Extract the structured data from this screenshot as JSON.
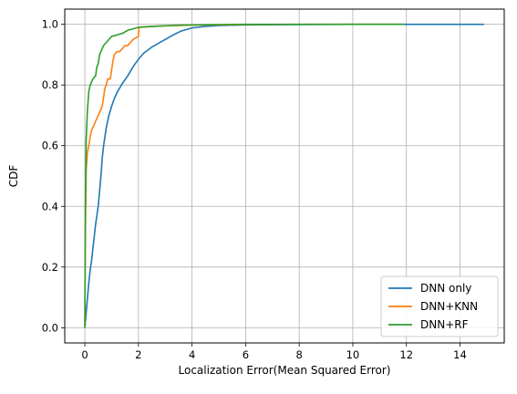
{
  "chart_data": {
    "type": "line",
    "title": "",
    "xlabel": "Localization Error(Mean Squared Error)",
    "ylabel": "CDF",
    "xlim": [
      -0.75,
      15.65
    ],
    "ylim": [
      -0.05,
      1.05
    ],
    "xticks": [
      0,
      2,
      4,
      6,
      8,
      10,
      12,
      14
    ],
    "yticks": [
      0.0,
      0.2,
      0.4,
      0.6,
      0.8,
      1.0
    ],
    "xtick_labels": [
      "0",
      "2",
      "4",
      "6",
      "8",
      "10",
      "12",
      "14"
    ],
    "ytick_labels": [
      "0.0",
      "0.2",
      "0.4",
      "0.6",
      "0.8",
      "1.0"
    ],
    "grid": true,
    "legend_position": "bottom-right",
    "series": [
      {
        "name": "DNN only",
        "color": "#1f77b4",
        "points": [
          [
            0.0,
            0.0
          ],
          [
            0.05,
            0.05
          ],
          [
            0.1,
            0.1
          ],
          [
            0.15,
            0.15
          ],
          [
            0.2,
            0.19
          ],
          [
            0.25,
            0.22
          ],
          [
            0.3,
            0.26
          ],
          [
            0.35,
            0.3
          ],
          [
            0.4,
            0.34
          ],
          [
            0.45,
            0.37
          ],
          [
            0.5,
            0.4
          ],
          [
            0.55,
            0.45
          ],
          [
            0.6,
            0.5
          ],
          [
            0.65,
            0.56
          ],
          [
            0.7,
            0.6
          ],
          [
            0.75,
            0.63
          ],
          [
            0.8,
            0.66
          ],
          [
            0.9,
            0.7
          ],
          [
            1.0,
            0.73
          ],
          [
            1.1,
            0.755
          ],
          [
            1.2,
            0.775
          ],
          [
            1.4,
            0.805
          ],
          [
            1.6,
            0.83
          ],
          [
            1.8,
            0.86
          ],
          [
            2.0,
            0.885
          ],
          [
            2.2,
            0.905
          ],
          [
            2.5,
            0.925
          ],
          [
            2.8,
            0.94
          ],
          [
            3.0,
            0.95
          ],
          [
            3.3,
            0.965
          ],
          [
            3.6,
            0.978
          ],
          [
            4.0,
            0.988
          ],
          [
            4.5,
            0.993
          ],
          [
            5.0,
            0.996
          ],
          [
            6.0,
            0.998
          ],
          [
            8.0,
            0.999
          ],
          [
            10.0,
            1.0
          ],
          [
            12.0,
            1.0
          ],
          [
            14.9,
            1.0
          ]
        ]
      },
      {
        "name": "DNN+KNN",
        "color": "#ff7f0e",
        "points": [
          [
            0.0,
            0.0
          ],
          [
            0.02,
            0.3
          ],
          [
            0.05,
            0.52
          ],
          [
            0.1,
            0.58
          ],
          [
            0.15,
            0.6
          ],
          [
            0.2,
            0.63
          ],
          [
            0.25,
            0.65
          ],
          [
            0.3,
            0.66
          ],
          [
            0.35,
            0.67
          ],
          [
            0.4,
            0.68
          ],
          [
            0.45,
            0.69
          ],
          [
            0.5,
            0.7
          ],
          [
            0.55,
            0.71
          ],
          [
            0.6,
            0.72
          ],
          [
            0.65,
            0.73
          ],
          [
            0.7,
            0.76
          ],
          [
            0.75,
            0.79
          ],
          [
            0.8,
            0.8
          ],
          [
            0.85,
            0.82
          ],
          [
            0.95,
            0.82
          ],
          [
            1.0,
            0.85
          ],
          [
            1.05,
            0.88
          ],
          [
            1.1,
            0.9
          ],
          [
            1.2,
            0.91
          ],
          [
            1.3,
            0.91
          ],
          [
            1.4,
            0.92
          ],
          [
            1.5,
            0.93
          ],
          [
            1.6,
            0.93
          ],
          [
            1.7,
            0.94
          ],
          [
            1.8,
            0.95
          ],
          [
            1.9,
            0.955
          ],
          [
            2.0,
            0.96
          ],
          [
            2.02,
            0.99
          ],
          [
            2.5,
            0.993
          ],
          [
            3.0,
            0.995
          ],
          [
            4.0,
            0.997
          ],
          [
            6.0,
            0.999
          ],
          [
            8.0,
            1.0
          ],
          [
            10.0,
            1.0
          ],
          [
            11.9,
            1.0
          ]
        ]
      },
      {
        "name": "DNN+RF",
        "color": "#2ca02c",
        "points": [
          [
            0.0,
            0.0
          ],
          [
            0.02,
            0.4
          ],
          [
            0.05,
            0.62
          ],
          [
            0.1,
            0.72
          ],
          [
            0.15,
            0.78
          ],
          [
            0.2,
            0.8
          ],
          [
            0.3,
            0.82
          ],
          [
            0.4,
            0.83
          ],
          [
            0.45,
            0.86
          ],
          [
            0.5,
            0.87
          ],
          [
            0.55,
            0.9
          ],
          [
            0.6,
            0.91
          ],
          [
            0.7,
            0.93
          ],
          [
            0.8,
            0.94
          ],
          [
            0.9,
            0.95
          ],
          [
            1.0,
            0.96
          ],
          [
            1.2,
            0.965
          ],
          [
            1.4,
            0.97
          ],
          [
            1.6,
            0.98
          ],
          [
            1.8,
            0.985
          ],
          [
            2.0,
            0.99
          ],
          [
            2.5,
            0.993
          ],
          [
            3.0,
            0.995
          ],
          [
            3.5,
            0.997
          ],
          [
            4.0,
            0.998
          ],
          [
            5.0,
            0.999
          ],
          [
            6.0,
            1.0
          ],
          [
            8.0,
            1.0
          ],
          [
            10.0,
            1.0
          ],
          [
            11.9,
            1.0
          ]
        ]
      }
    ]
  }
}
